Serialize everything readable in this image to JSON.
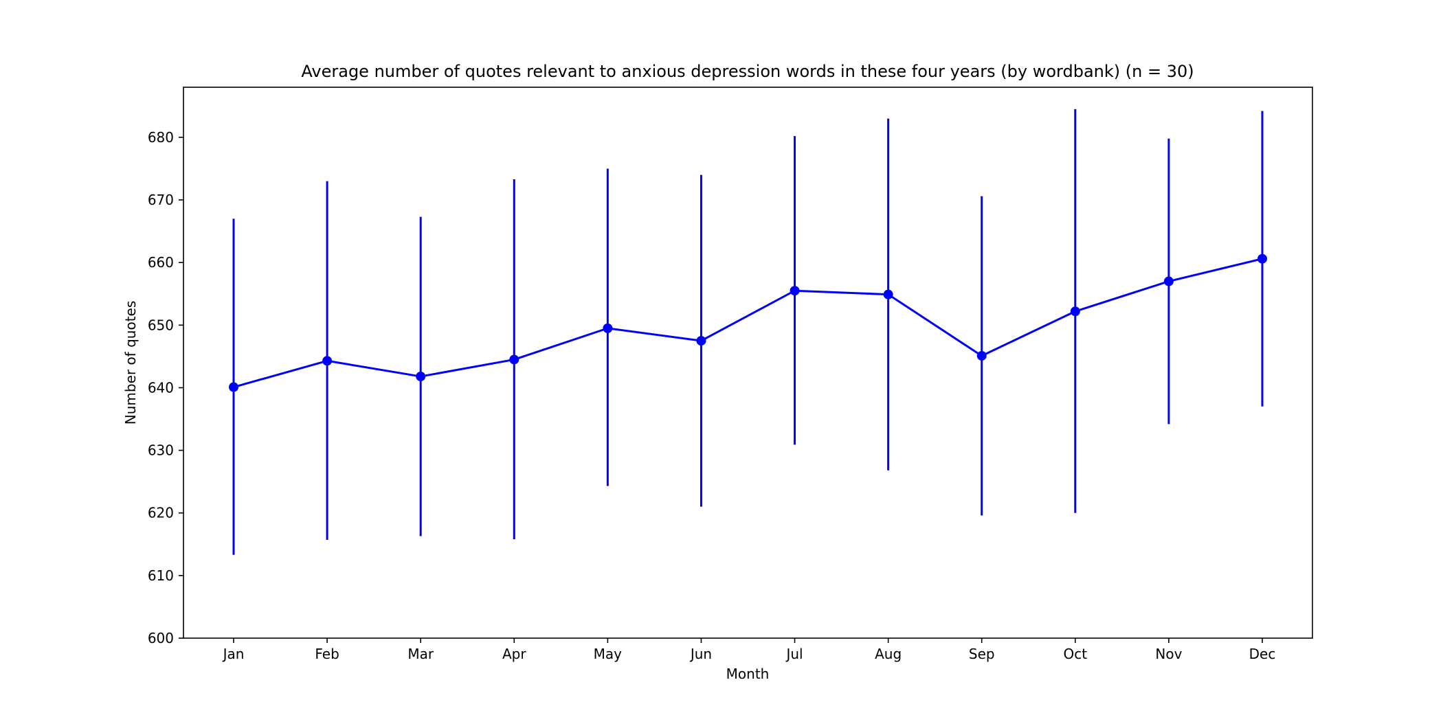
{
  "chart_data": {
    "type": "line",
    "title": "Average number of quotes relevant to anxious depression words in these four years (by wordbank) (n = 30)",
    "xlabel": "Month",
    "ylabel": "Number of quotes",
    "categories": [
      "Jan",
      "Feb",
      "Mar",
      "Apr",
      "May",
      "Jun",
      "Jul",
      "Aug",
      "Sep",
      "Oct",
      "Nov",
      "Dec"
    ],
    "series": [
      {
        "values": [
          640.1,
          644.3,
          641.8,
          644.5,
          649.5,
          647.5,
          655.5,
          654.9,
          645.1,
          652.2,
          657.0,
          660.6
        ],
        "error_low": [
          613.3,
          615.7,
          616.3,
          615.8,
          624.3,
          621.0,
          630.9,
          626.8,
          619.6,
          620.0,
          634.2,
          637.0
        ],
        "error_high": [
          667.0,
          673.0,
          667.3,
          673.3,
          675.0,
          674.0,
          680.2,
          683.0,
          670.6,
          684.5,
          679.8,
          684.2
        ]
      }
    ],
    "ylim": [
      600,
      688
    ],
    "yticks": [
      600,
      610,
      620,
      630,
      640,
      650,
      660,
      670,
      680
    ],
    "grid": false,
    "legend": "none",
    "color": "#0000ff"
  }
}
